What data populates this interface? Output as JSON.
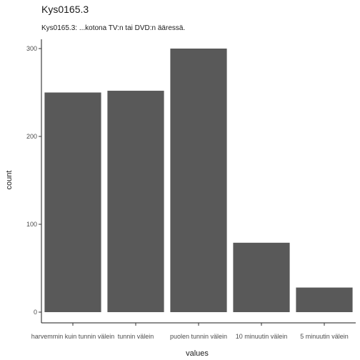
{
  "chart_data": {
    "type": "bar",
    "title": "Kys0165.3",
    "subtitle": "Kys0165.3: ...kotona TV:n tai DVD:n ääressä.",
    "xlabel": "values",
    "ylabel": "count",
    "categories": [
      "harvemmin kuin tunnin välein",
      "tunnin välein",
      "puolen tunnin välein",
      "10 minuutin välein",
      "5 minuutin välein"
    ],
    "values": [
      250,
      252,
      300,
      79,
      28
    ],
    "ylim": [
      0,
      300
    ],
    "yticks": [
      0,
      100,
      200,
      300
    ],
    "bar_color": "#595959",
    "grid": false
  }
}
